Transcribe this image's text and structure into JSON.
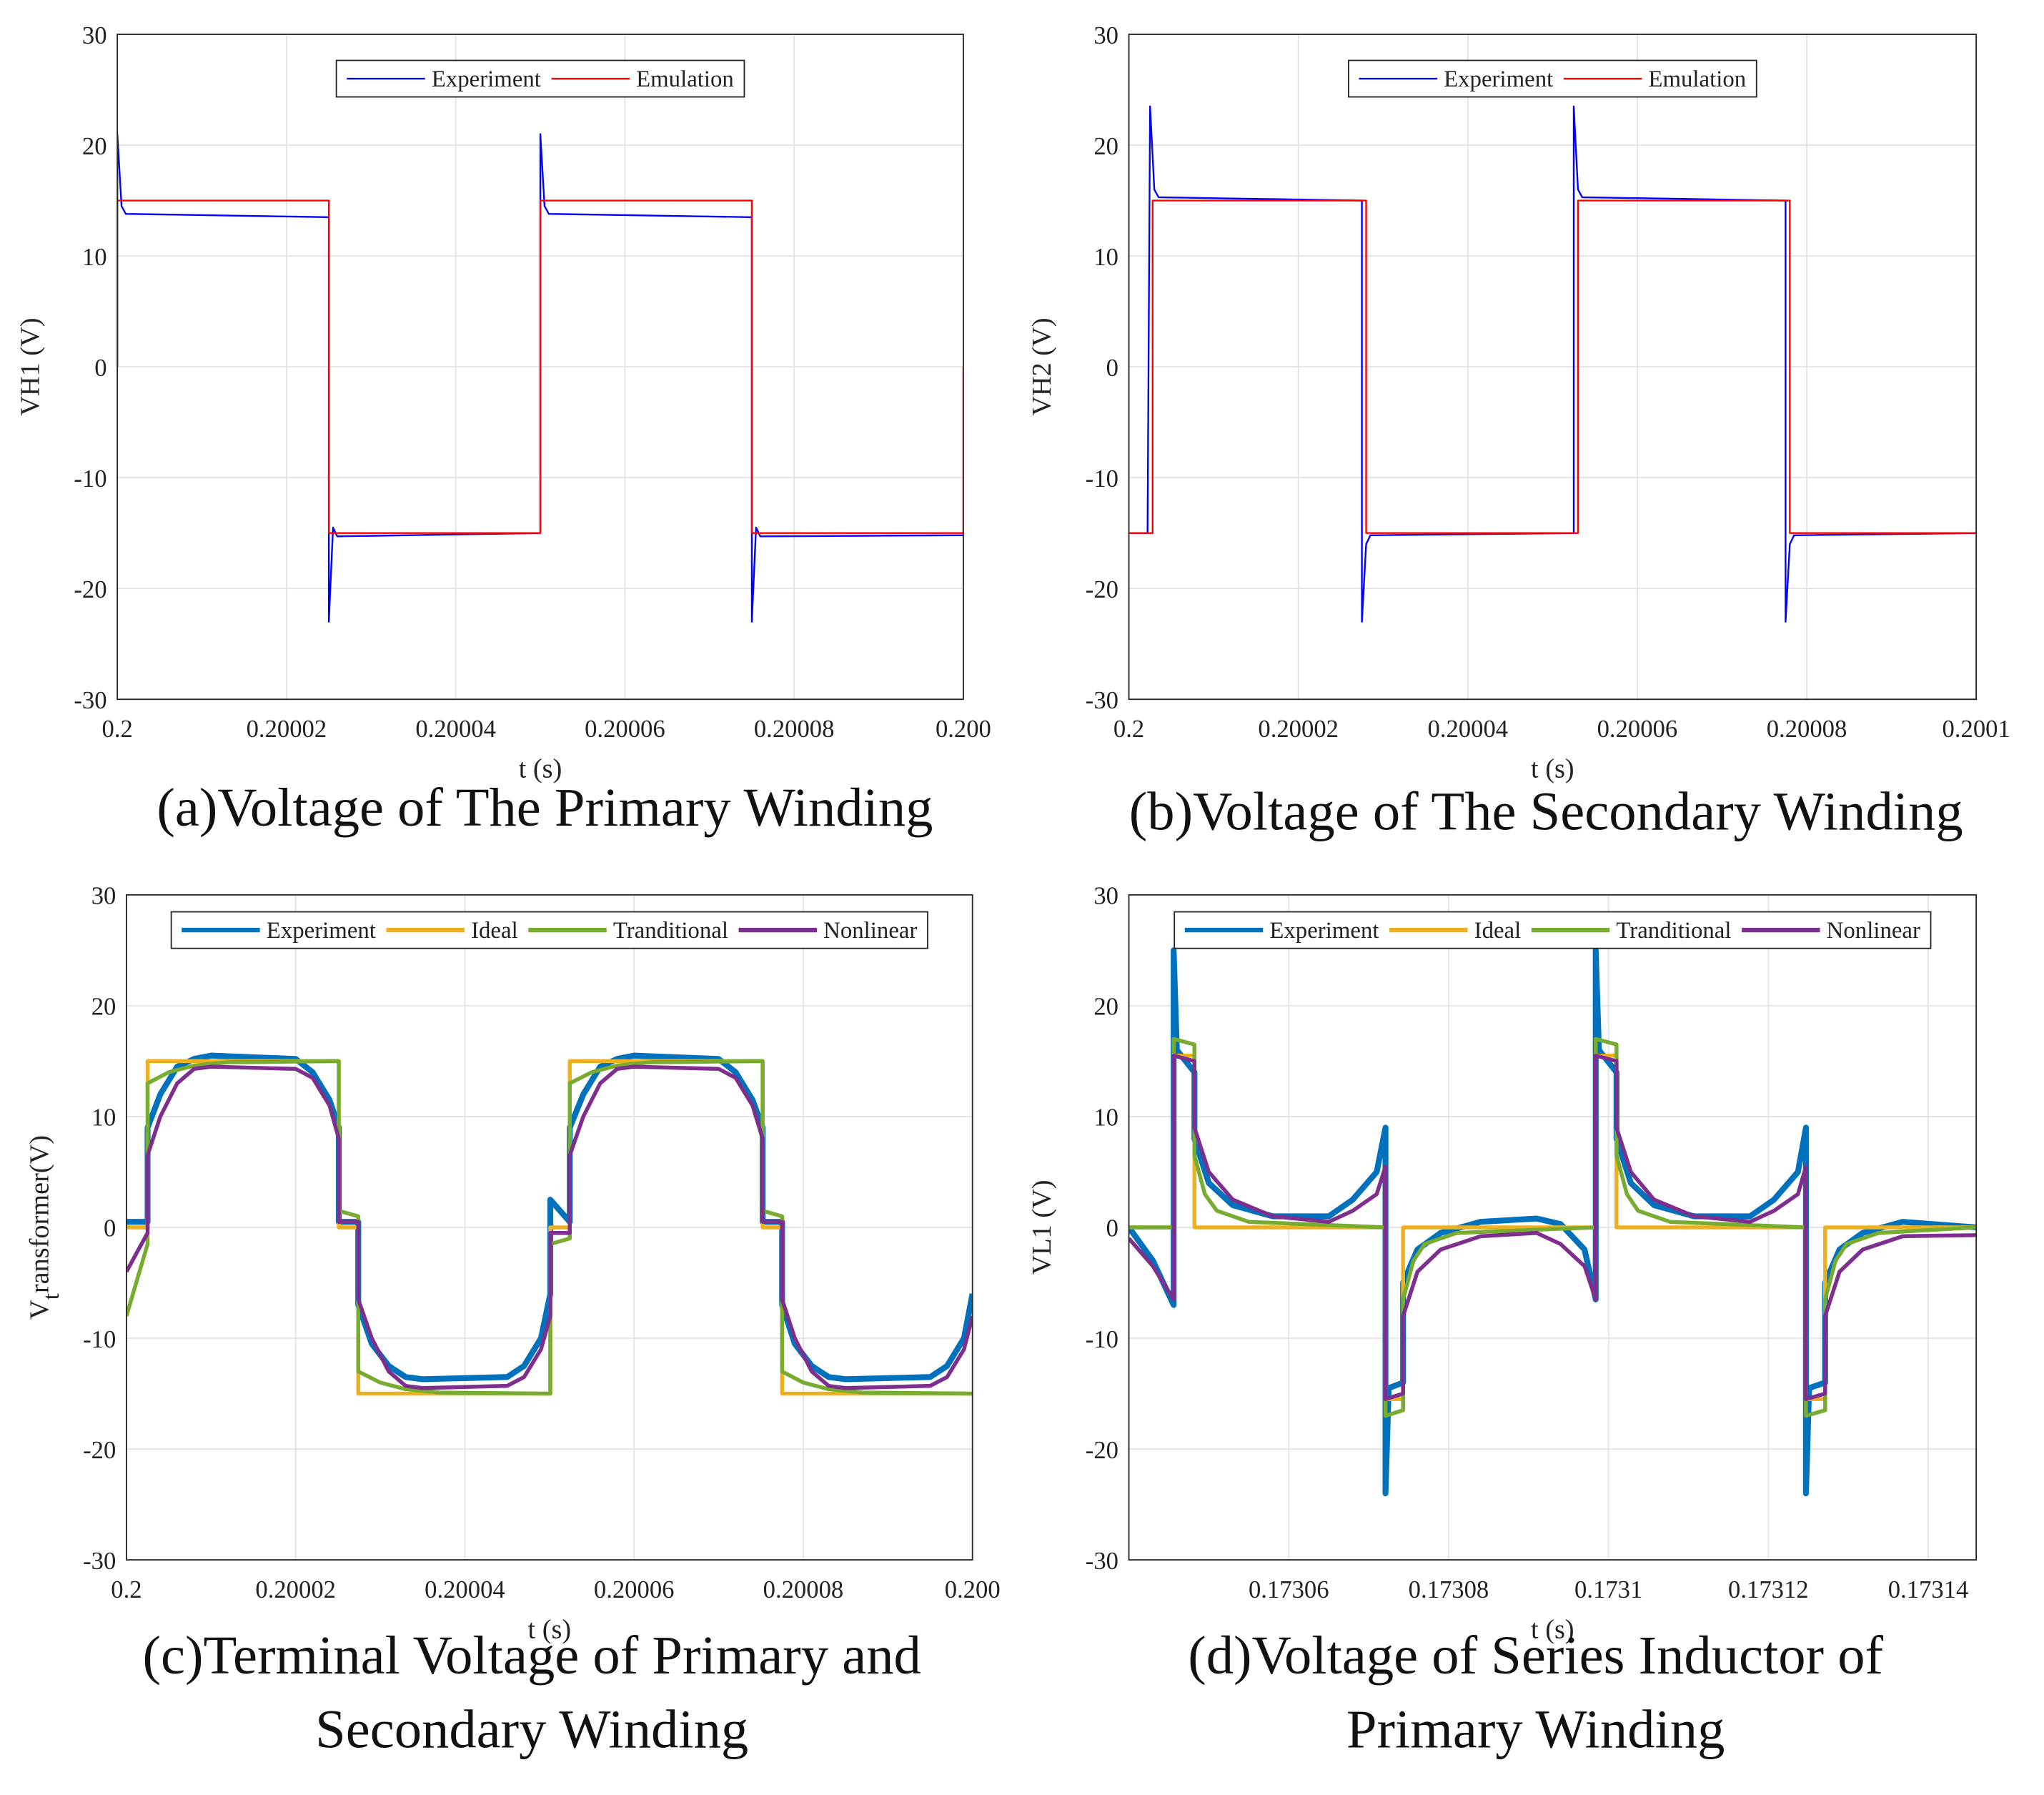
{
  "chart_data": [
    {
      "type": "line",
      "caption": [
        "(a)Voltage of The Primary Winding"
      ],
      "xlabel": "t (s)",
      "ylabel": "VH1 (V)",
      "xlim": [
        0.2,
        0.2001
      ],
      "xticks": [
        0.2,
        0.20002,
        0.20004,
        0.20006,
        0.20008,
        {
          "value": 0.2001,
          "label": "0.200"
        }
      ],
      "ylim": [
        -30,
        30
      ],
      "yticks": [
        -30,
        -20,
        -10,
        0,
        10,
        20,
        30
      ],
      "grid": true,
      "legend": "north",
      "series": [
        {
          "name": "Experiment",
          "color": "#0000ff",
          "x": [
            0.2,
            0.2,
            0.2000005,
            0.200001,
            0.200025,
            0.200025,
            0.2000255,
            0.200026,
            0.20005,
            0.20005,
            0.2000505,
            0.200051,
            0.200075,
            0.200075,
            0.2000755,
            0.200076,
            0.2001
          ],
          "values": [
            0,
            21,
            14.5,
            13.8,
            13.5,
            -23,
            -14.5,
            -15.3,
            -15,
            21,
            14.5,
            13.8,
            13.5,
            -23,
            -14.5,
            -15.3,
            -15.2
          ]
        },
        {
          "name": "Emulation",
          "color": "#ff0000",
          "x": [
            0.2,
            0.2,
            0.200025,
            0.200025,
            0.20005,
            0.20005,
            0.200075,
            0.200075,
            0.2001,
            0.2001
          ],
          "values": [
            0,
            15,
            15,
            -15,
            -15,
            15,
            15,
            -15,
            -15,
            0
          ]
        }
      ]
    },
    {
      "type": "line",
      "caption": [
        "(b)Voltage of The Secondary Winding"
      ],
      "xlabel": "t (s)",
      "ylabel": "VH2 (V)",
      "xlim": [
        0.2,
        0.2001
      ],
      "xticks": [
        0.2,
        0.20002,
        0.20004,
        0.20006,
        0.20008,
        0.2001
      ],
      "ylim": [
        -30,
        30
      ],
      "yticks": [
        -30,
        -20,
        -10,
        0,
        10,
        20,
        30
      ],
      "grid": true,
      "legend": "north",
      "series": [
        {
          "name": "Experiment",
          "color": "#0000ff",
          "x": [
            0.2,
            0.2000022,
            0.2000025,
            0.200003,
            0.2000035,
            0.2000275,
            0.2000275,
            0.200028,
            0.2000285,
            0.2000525,
            0.2000525,
            0.200053,
            0.2000535,
            0.2000775,
            0.2000775,
            0.200078,
            0.2000785,
            0.2001
          ],
          "values": [
            -15,
            -15,
            23.5,
            16,
            15.3,
            15,
            -23,
            -16,
            -15.2,
            -15,
            23.5,
            16,
            15.3,
            15,
            -23,
            -16,
            -15.2,
            -15
          ]
        },
        {
          "name": "Emulation",
          "color": "#ff0000",
          "x": [
            0.2,
            0.2000028,
            0.2000028,
            0.200028,
            0.200028,
            0.200053,
            0.200053,
            0.200078,
            0.200078,
            0.2001
          ],
          "values": [
            -15,
            -15,
            15,
            15,
            -15,
            -15,
            15,
            15,
            -15,
            -15
          ]
        }
      ]
    },
    {
      "type": "line",
      "caption": [
        "(c)Terminal Voltage of Primary and",
        "Secondary Winding"
      ],
      "xlabel": "t (s)",
      "ylabel": {
        "main": "V",
        "sub": "t",
        "rest": "ransformer(V)"
      },
      "xlim": [
        0.2,
        0.2001
      ],
      "xticks": [
        0.2,
        0.20002,
        0.20004,
        0.20006,
        0.20008,
        {
          "value": 0.2001,
          "label": "0.200"
        }
      ],
      "ylim": [
        -30,
        30
      ],
      "yticks": [
        -30,
        -20,
        -10,
        0,
        10,
        20,
        30
      ],
      "grid": true,
      "legend": "north",
      "series": [
        {
          "name": "Experiment",
          "color": "#0072bd",
          "width": 4.5,
          "x": [
            0.2,
            0.2000025,
            0.2000025,
            0.200004,
            0.200006,
            0.200008,
            0.20001,
            0.20002,
            0.200022,
            0.200024,
            0.2000251,
            0.2000251,
            0.2000274,
            0.2000274,
            0.200029,
            0.200031,
            0.200033,
            0.200035,
            0.200045,
            0.200047,
            0.200049,
            0.2000501,
            0.2000501,
            0.2000524,
            0.2000524,
            0.200054,
            0.200056,
            0.200058,
            0.20006,
            0.20007,
            0.200072,
            0.200074,
            0.2000752,
            0.2000752,
            0.2000775,
            0.2000775,
            0.200079,
            0.200081,
            0.200083,
            0.200085,
            0.200095,
            0.200097,
            0.200099,
            0.2001
          ],
          "values": [
            0.5,
            0.5,
            9,
            12,
            14.5,
            15.2,
            15.5,
            15.2,
            14,
            11.5,
            9,
            0.5,
            0.5,
            -7,
            -10.5,
            -12.5,
            -13.5,
            -13.7,
            -13.5,
            -12.5,
            -10,
            -6,
            2.5,
            0.5,
            9,
            12,
            14.5,
            15.2,
            15.5,
            15.2,
            14,
            11.5,
            9,
            0.5,
            0.5,
            -7,
            -10.5,
            -12.5,
            -13.5,
            -13.7,
            -13.5,
            -12.5,
            -10,
            -6
          ]
        },
        {
          "name": "Ideal",
          "color": "#edb120",
          "width": 3,
          "x": [
            0.2,
            0.2000025,
            0.2000025,
            0.2000251,
            0.2000251,
            0.2000274,
            0.2000274,
            0.2000501,
            0.2000501,
            0.2000524,
            0.2000524,
            0.2000752,
            0.2000752,
            0.2000775,
            0.2000775,
            0.2001
          ],
          "values": [
            0,
            0,
            15,
            15,
            0,
            0,
            -15,
            -15,
            0,
            0,
            15,
            15,
            0,
            0,
            -15,
            -15
          ]
        },
        {
          "name": "Tranditional",
          "color": "#77ac30",
          "width": 3,
          "x": [
            0.2,
            0.2000025,
            0.2000025,
            0.200005,
            0.200008,
            0.200012,
            0.2000251,
            0.2000251,
            0.2000274,
            0.2000274,
            0.20003,
            0.200033,
            0.200037,
            0.2000501,
            0.2000501,
            0.2000524,
            0.2000524,
            0.200055,
            0.200058,
            0.200062,
            0.2000752,
            0.2000752,
            0.2000775,
            0.2000775,
            0.20008,
            0.200083,
            0.200087,
            0.2001
          ],
          "values": [
            -8,
            -1.5,
            13,
            14,
            14.6,
            14.9,
            15,
            1.5,
            1,
            -13,
            -14,
            -14.6,
            -14.9,
            -15,
            -1.5,
            -1,
            13,
            14,
            14.6,
            14.9,
            15,
            1.5,
            1,
            -13,
            -14,
            -14.6,
            -14.9,
            -15
          ]
        },
        {
          "name": "Nonlinear",
          "color": "#7e2f8e",
          "width": 3,
          "x": [
            0.2,
            0.2000025,
            0.2000025,
            0.200004,
            0.200006,
            0.200008,
            0.20001,
            0.20002,
            0.200022,
            0.200024,
            0.2000251,
            0.2000251,
            0.2000274,
            0.2000274,
            0.200029,
            0.200031,
            0.200033,
            0.200035,
            0.200045,
            0.200047,
            0.200049,
            0.2000501,
            0.2000501,
            0.2000524,
            0.2000524,
            0.200054,
            0.200056,
            0.200058,
            0.20006,
            0.20007,
            0.200072,
            0.200074,
            0.2000752,
            0.2000752,
            0.2000775,
            0.2000775,
            0.200079,
            0.200081,
            0.200083,
            0.200085,
            0.200095,
            0.200097,
            0.200099,
            0.2001
          ],
          "values": [
            -4,
            -0.5,
            6.5,
            10,
            13,
            14.3,
            14.5,
            14.3,
            13.5,
            11,
            8,
            0.5,
            0.5,
            -6.5,
            -10,
            -13,
            -14.3,
            -14.5,
            -14.3,
            -13.5,
            -11,
            -8,
            -0.5,
            -0.5,
            6.5,
            10,
            13,
            14.3,
            14.5,
            14.3,
            13.5,
            11,
            8,
            0.5,
            0.5,
            -6.5,
            -10,
            -13,
            -14.3,
            -14.5,
            -14.3,
            -13.5,
            -11,
            -8
          ]
        }
      ]
    },
    {
      "type": "line",
      "caption": [
        "(d)Voltage of Series Inductor of",
        "Primary Winding"
      ],
      "xlabel": "t (s)",
      "ylabel": "VL1 (V)",
      "xlim": [
        0.17304,
        0.173146
      ],
      "xticks": [
        0.17306,
        0.17308,
        0.1731,
        0.17312,
        0.17314
      ],
      "ylim": [
        -30,
        30
      ],
      "yticks": [
        -30,
        -20,
        -10,
        0,
        10,
        20,
        30
      ],
      "grid": true,
      "legend": "north",
      "series": [
        {
          "name": "Experiment",
          "color": "#0072bd",
          "width": 4.5,
          "x": [
            0.17304,
            0.173043,
            0.1730456,
            0.1730456,
            0.173046,
            0.1730482,
            0.1730482,
            0.17305,
            0.173053,
            0.173058,
            0.173065,
            0.173068,
            0.173071,
            0.1730721,
            0.1730721,
            0.1730725,
            0.1730743,
            0.1730743,
            0.1730761,
            0.173079,
            0.173084,
            0.173091,
            0.173094,
            0.173097,
            0.1730984,
            0.1730984,
            0.1730988,
            0.173101,
            0.173101,
            0.1731028,
            0.1731057,
            0.1731107,
            0.1731177,
            0.1731207,
            0.1731237,
            0.1731247,
            0.1731247,
            0.1731251,
            0.1731271,
            0.1731271,
            0.1731289,
            0.1731318,
            0.1731368,
            0.173146
          ],
          "values": [
            0,
            -3,
            -7,
            25,
            16,
            14,
            8,
            4,
            2,
            1,
            1,
            2.5,
            5,
            9,
            -24,
            -14.5,
            -14,
            -5,
            -2,
            -0.5,
            0.5,
            0.8,
            0.3,
            -2,
            -6.5,
            25,
            16,
            14,
            8,
            4,
            2,
            1,
            1,
            2.5,
            5,
            9,
            -24,
            -14.5,
            -14,
            -5,
            -2,
            -0.5,
            0.5,
            0
          ]
        },
        {
          "name": "Ideal",
          "color": "#edb120",
          "width": 3,
          "x": [
            0.17304,
            0.1730456,
            0.1730456,
            0.1730482,
            0.1730482,
            0.1730721,
            0.1730721,
            0.1730743,
            0.1730743,
            0.1730984,
            0.1730984,
            0.173101,
            0.173101,
            0.1731247,
            0.1731247,
            0.1731271,
            0.1731271,
            0.173146
          ],
          "values": [
            0,
            0,
            15.5,
            15.5,
            0,
            0,
            -15.5,
            -15.5,
            0,
            0,
            15.5,
            15.5,
            0,
            0,
            -15.5,
            -15.5,
            0,
            0
          ]
        },
        {
          "name": "Tranditional",
          "color": "#77ac30",
          "width": 3,
          "x": [
            0.17304,
            0.1730456,
            0.1730456,
            0.1730482,
            0.1730482,
            0.1730495,
            0.173051,
            0.173055,
            0.1730721,
            0.1730721,
            0.1730743,
            0.1730743,
            0.1730756,
            0.173077,
            0.173081,
            0.1730984,
            0.1730984,
            0.173101,
            0.173101,
            0.1731023,
            0.1731037,
            0.1731077,
            0.1731247,
            0.1731247,
            0.1731271,
            0.1731271,
            0.1731284,
            0.1731298,
            0.1731338,
            0.173146
          ],
          "values": [
            0,
            0,
            17,
            16.5,
            6.5,
            3,
            1.5,
            0.5,
            0,
            -17,
            -16.5,
            -6.5,
            -3,
            -1.5,
            -0.5,
            0,
            17,
            16.5,
            6.5,
            3,
            1.5,
            0.5,
            0,
            -17,
            -16.5,
            -6.5,
            -3,
            -1.5,
            -0.5,
            0
          ]
        },
        {
          "name": "Nonlinear",
          "color": "#7e2f8e",
          "width": 3,
          "x": [
            0.17304,
            0.173043,
            0.1730456,
            0.1730456,
            0.1730482,
            0.1730482,
            0.17305,
            0.173053,
            0.173058,
            0.173065,
            0.173068,
            0.173071,
            0.1730721,
            0.1730721,
            0.1730743,
            0.1730743,
            0.1730761,
            0.173079,
            0.173084,
            0.173091,
            0.173094,
            0.173097,
            0.1730984,
            0.1730984,
            0.173101,
            0.173101,
            0.1731028,
            0.1731057,
            0.1731107,
            0.1731177,
            0.1731207,
            0.1731237,
            0.1731247,
            0.1731247,
            0.1731271,
            0.1731271,
            0.1731289,
            0.1731318,
            0.1731368,
            0.173146
          ],
          "values": [
            -1,
            -3.5,
            -6.5,
            15.5,
            15,
            9,
            5,
            2.5,
            1,
            0.5,
            1.5,
            3,
            5.5,
            -15.5,
            -15,
            -8,
            -4,
            -2,
            -0.8,
            -0.5,
            -1.5,
            -3.5,
            -6.5,
            15.5,
            15,
            9,
            5,
            2.5,
            1,
            0.5,
            1.5,
            3,
            5.5,
            -15.5,
            -15,
            -8,
            -4,
            -2,
            -0.8,
            -0.7
          ]
        }
      ]
    }
  ]
}
